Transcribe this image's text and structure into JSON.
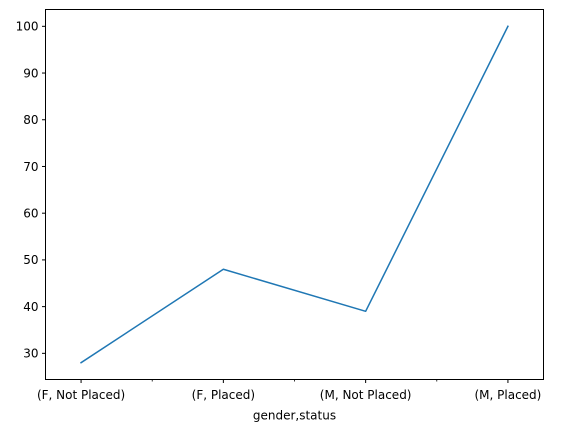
{
  "chart_data": {
    "type": "line",
    "categories": [
      "(F, Not Placed)",
      "(F, Placed)",
      "(M, Not Placed)",
      "(M, Placed)"
    ],
    "series": [
      {
        "values": [
          28,
          48,
          39,
          100
        ],
        "color": "#1f77b4"
      }
    ],
    "title": "",
    "xlabel": "gender,status",
    "ylabel": "",
    "ylim": [
      24.4,
      103.6
    ],
    "yticks": [
      30,
      40,
      50,
      60,
      70,
      80,
      90,
      100
    ],
    "grid": false,
    "legend": "none"
  }
}
